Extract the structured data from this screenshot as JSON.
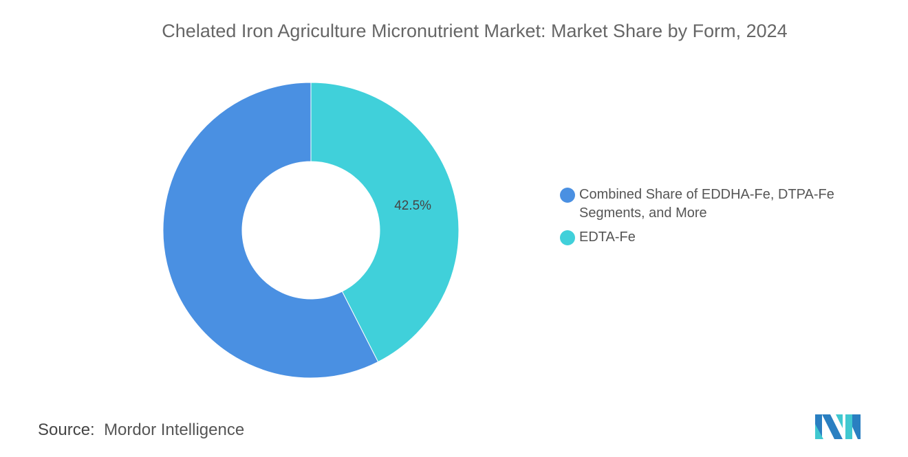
{
  "chart_data": {
    "type": "pie",
    "donut": true,
    "title": "Chelated Iron Agriculture Micronutrient Market: Market Share by Form, 2024",
    "series": [
      {
        "name": "Combined Share of EDDHA-Fe, DTPA-Fe Segments, and More",
        "value": 57.5,
        "color": "#4a90e2",
        "label": ""
      },
      {
        "name": "EDTA-Fe",
        "value": 42.5,
        "color": "#40d0da",
        "label": "42.5%"
      }
    ],
    "legend_position": "right"
  },
  "source": {
    "label": "Source:",
    "value": "Mordor Intelligence"
  },
  "logo": {
    "text": "Mordor Intelligence"
  }
}
